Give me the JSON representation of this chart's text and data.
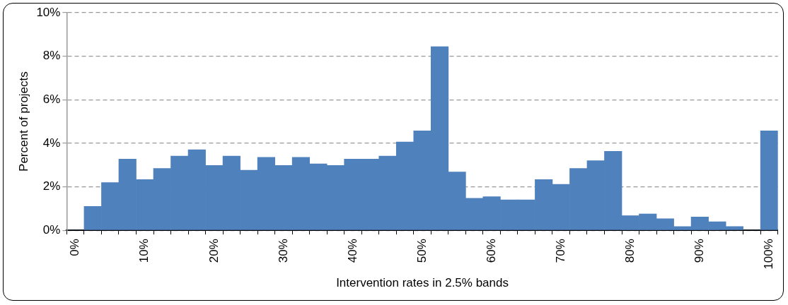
{
  "chart_data": {
    "type": "bar",
    "xlabel": "Intervention rates in 2.5% bands",
    "ylabel": "Percent of projects",
    "categories": [
      "0%",
      null,
      null,
      null,
      "10%",
      null,
      null,
      null,
      "20%",
      null,
      null,
      null,
      "30%",
      null,
      null,
      null,
      "40%",
      null,
      null,
      null,
      "50%",
      null,
      null,
      null,
      "60%",
      null,
      null,
      null,
      "70%",
      null,
      null,
      null,
      "80%",
      null,
      null,
      null,
      "90%",
      null,
      null,
      null,
      "100%"
    ],
    "values": [
      0,
      1.1,
      2.19,
      3.27,
      2.33,
      2.84,
      3.41,
      3.7,
      2.98,
      3.41,
      2.76,
      3.35,
      2.98,
      3.35,
      3.05,
      2.98,
      3.27,
      3.27,
      3.41,
      4.06,
      4.57,
      8.44,
      2.68,
      1.47,
      1.54,
      1.4,
      1.4,
      2.33,
      2.11,
      2.84,
      3.2,
      3.63,
      0.67,
      0.75,
      0.53,
      0.17,
      0.61,
      0.39,
      0.17,
      0,
      4.57
    ],
    "color": "#4f81bd",
    "ylim": [
      0,
      10
    ],
    "yticks": [
      {
        "value": 0,
        "label": "0%"
      },
      {
        "value": 2,
        "label": "2%"
      },
      {
        "value": 4,
        "label": "4%"
      },
      {
        "value": 6,
        "label": "6%"
      },
      {
        "value": 8,
        "label": "8%"
      },
      {
        "value": 10,
        "label": "10%"
      }
    ],
    "grid": "y"
  }
}
